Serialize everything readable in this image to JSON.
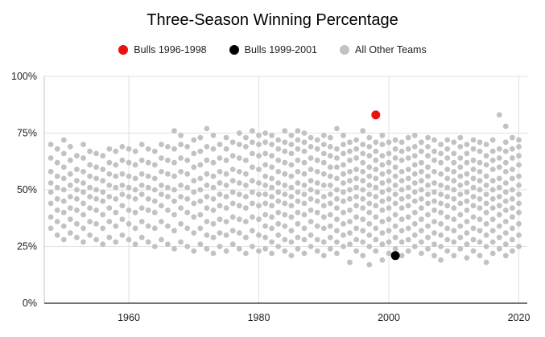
{
  "chart_data": {
    "type": "scatter",
    "title": "Three-Season Winning Percentage",
    "xlabel": "",
    "ylabel": "",
    "xlim": [
      1946,
      2021
    ],
    "ylim": [
      0,
      100
    ],
    "xticks": [
      1960,
      1980,
      2000,
      2020
    ],
    "yticks": [
      0,
      25,
      50,
      75,
      100
    ],
    "ytick_labels": [
      "0%",
      "25%",
      "50%",
      "75%",
      "100%"
    ],
    "grid": true,
    "legend_position": "top-center",
    "colors": {
      "grid": "#e2e2e2",
      "axis": "#212121",
      "y_axis_line": "#c6c6c6",
      "tick_text": "#1f1f1f",
      "background": "#ffffff"
    },
    "series": [
      {
        "name": "Bulls 1996-1998",
        "color": "#e8130c",
        "marker": "large-circle",
        "points": [
          [
            1998,
            83
          ]
        ]
      },
      {
        "name": "Bulls 1999-2001",
        "color": "#000000",
        "marker": "large-circle",
        "points": [
          [
            2001,
            21
          ]
        ]
      },
      {
        "name": "All Other Teams",
        "color": "#c2c2c2",
        "marker": "small-circle",
        "points_by_year": {
          "1948": [
            33,
            38,
            44,
            49,
            53,
            58,
            64,
            70
          ],
          "1949": [
            30,
            36,
            41,
            46,
            51,
            56,
            62,
            68
          ],
          "1950": [
            28,
            34,
            40,
            45,
            50,
            55,
            60,
            66,
            72
          ],
          "1951": [
            31,
            37,
            42,
            47,
            52,
            57,
            63,
            69
          ],
          "1952": [
            29,
            35,
            41,
            46,
            50,
            54,
            59,
            65
          ],
          "1953": [
            27,
            33,
            39,
            44,
            49,
            53,
            58,
            64,
            70
          ],
          "1954": [
            30,
            36,
            42,
            47,
            51,
            56,
            61,
            67
          ],
          "1955": [
            28,
            35,
            41,
            46,
            50,
            55,
            60,
            66
          ],
          "1956": [
            26,
            33,
            39,
            45,
            49,
            54,
            59,
            65
          ],
          "1957": [
            29,
            36,
            42,
            47,
            52,
            57,
            62,
            68
          ],
          "1958": [
            27,
            34,
            40,
            46,
            51,
            56,
            61,
            67
          ],
          "1959": [
            30,
            37,
            43,
            48,
            52,
            57,
            63,
            69
          ],
          "1960": [
            28,
            35,
            41,
            47,
            51,
            56,
            62,
            68
          ],
          "1961": [
            26,
            33,
            40,
            46,
            50,
            55,
            61,
            67
          ],
          "1962": [
            29,
            36,
            42,
            48,
            52,
            57,
            63,
            70
          ],
          "1963": [
            27,
            34,
            41,
            46,
            51,
            56,
            62,
            68
          ],
          "1964": [
            25,
            33,
            40,
            45,
            50,
            55,
            61,
            67
          ],
          "1965": [
            28,
            36,
            43,
            48,
            52,
            58,
            64,
            70
          ],
          "1966": [
            26,
            34,
            41,
            47,
            51,
            57,
            63,
            69
          ],
          "1967": [
            24,
            32,
            39,
            45,
            50,
            56,
            62,
            68,
            76
          ],
          "1968": [
            27,
            35,
            42,
            47,
            52,
            58,
            64,
            70,
            74
          ],
          "1969": [
            25,
            33,
            40,
            46,
            51,
            57,
            63,
            69
          ],
          "1970": [
            23,
            31,
            38,
            44,
            49,
            54,
            60,
            66,
            72
          ],
          "1971": [
            26,
            33,
            39,
            45,
            50,
            55,
            61,
            67,
            73
          ],
          "1972": [
            24,
            30,
            36,
            42,
            47,
            52,
            57,
            63,
            69,
            77
          ],
          "1973": [
            22,
            29,
            35,
            41,
            46,
            51,
            56,
            62,
            68,
            74
          ],
          "1974": [
            25,
            31,
            37,
            43,
            48,
            53,
            58,
            64,
            70
          ],
          "1975": [
            23,
            30,
            36,
            42,
            47,
            52,
            57,
            63,
            68,
            73
          ],
          "1976": [
            26,
            32,
            38,
            44,
            49,
            54,
            59,
            65,
            71
          ],
          "1977": [
            24,
            31,
            37,
            43,
            48,
            53,
            58,
            64,
            70,
            75
          ],
          "1978": [
            22,
            29,
            36,
            42,
            47,
            52,
            57,
            63,
            69,
            73
          ],
          "1979": [
            25,
            32,
            38,
            44,
            49,
            54,
            60,
            66,
            71,
            76
          ],
          "1980": [
            23,
            30,
            37,
            43,
            48,
            53,
            59,
            65,
            70,
            74
          ],
          "1981": [
            24,
            29,
            34,
            39,
            44,
            48,
            52,
            56,
            61,
            66,
            71,
            75
          ],
          "1982": [
            22,
            27,
            33,
            38,
            43,
            47,
            51,
            55,
            60,
            65,
            70,
            74
          ],
          "1983": [
            25,
            30,
            35,
            40,
            45,
            49,
            53,
            58,
            63,
            68,
            72
          ],
          "1984": [
            23,
            28,
            34,
            39,
            44,
            48,
            52,
            57,
            62,
            67,
            71,
            76
          ],
          "1985": [
            21,
            27,
            32,
            38,
            43,
            47,
            51,
            56,
            61,
            66,
            70,
            74
          ],
          "1986": [
            24,
            29,
            35,
            40,
            45,
            49,
            53,
            58,
            63,
            68,
            72,
            76
          ],
          "1987": [
            22,
            28,
            33,
            39,
            44,
            48,
            52,
            57,
            62,
            67,
            71,
            75
          ],
          "1988": [
            25,
            30,
            36,
            41,
            46,
            50,
            54,
            59,
            64,
            69,
            73
          ],
          "1989": [
            23,
            28,
            34,
            40,
            45,
            49,
            53,
            58,
            63,
            68,
            72
          ],
          "1990": [
            21,
            27,
            33,
            38,
            43,
            47,
            52,
            57,
            62,
            66,
            70,
            74
          ],
          "1991": [
            24,
            29,
            34,
            39,
            44,
            48,
            52,
            56,
            60,
            65,
            69,
            73
          ],
          "1992": [
            22,
            27,
            32,
            37,
            42,
            46,
            50,
            55,
            60,
            64,
            68,
            77
          ],
          "1993": [
            25,
            30,
            35,
            40,
            45,
            49,
            53,
            57,
            61,
            66,
            70,
            74
          ],
          "1994": [
            18,
            26,
            31,
            36,
            41,
            46,
            50,
            54,
            58,
            63,
            67,
            71
          ],
          "1995": [
            23,
            28,
            33,
            38,
            43,
            47,
            51,
            55,
            59,
            64,
            68,
            72
          ],
          "1996": [
            21,
            27,
            32,
            37,
            42,
            46,
            50,
            54,
            58,
            62,
            66,
            70,
            76
          ],
          "1997": [
            17,
            25,
            30,
            35,
            40,
            44,
            48,
            52,
            56,
            60,
            65,
            69,
            73
          ],
          "1998": [
            23,
            28,
            33,
            38,
            43,
            47,
            51,
            55,
            59,
            63,
            67,
            71
          ],
          "1999": [
            19,
            26,
            31,
            36,
            41,
            45,
            49,
            53,
            57,
            61,
            65,
            70,
            74
          ],
          "2000": [
            22,
            27,
            32,
            37,
            42,
            46,
            50,
            54,
            58,
            62,
            66,
            71
          ],
          "2001": [
            24,
            29,
            34,
            39,
            44,
            48,
            52,
            56,
            60,
            64,
            68,
            72
          ],
          "2002": [
            21,
            27,
            32,
            37,
            42,
            46,
            50,
            54,
            58,
            63,
            67,
            71
          ],
          "2003": [
            23,
            28,
            33,
            38,
            43,
            47,
            51,
            55,
            59,
            64,
            68,
            73
          ],
          "2004": [
            25,
            30,
            35,
            40,
            45,
            49,
            53,
            57,
            61,
            65,
            69,
            74
          ],
          "2005": [
            22,
            27,
            32,
            37,
            42,
            46,
            50,
            54,
            58,
            62,
            67,
            71
          ],
          "2006": [
            24,
            29,
            34,
            39,
            44,
            48,
            52,
            56,
            60,
            65,
            69,
            73
          ],
          "2007": [
            21,
            26,
            31,
            36,
            41,
            45,
            49,
            53,
            58,
            63,
            67,
            72
          ],
          "2008": [
            19,
            25,
            30,
            35,
            40,
            44,
            48,
            52,
            57,
            62,
            66,
            70
          ],
          "2009": [
            23,
            28,
            33,
            38,
            43,
            47,
            51,
            55,
            59,
            64,
            68,
            72
          ],
          "2010": [
            21,
            27,
            32,
            37,
            42,
            46,
            50,
            54,
            58,
            62,
            66,
            71
          ],
          "2011": [
            24,
            29,
            34,
            39,
            44,
            48,
            52,
            56,
            60,
            64,
            69,
            73
          ],
          "2012": [
            20,
            26,
            31,
            36,
            41,
            45,
            49,
            53,
            57,
            62,
            66,
            70
          ],
          "2013": [
            23,
            28,
            33,
            38,
            43,
            47,
            51,
            55,
            59,
            63,
            68,
            72
          ],
          "2014": [
            21,
            27,
            32,
            37,
            42,
            46,
            50,
            54,
            58,
            62,
            67,
            71
          ],
          "2015": [
            18,
            25,
            30,
            35,
            40,
            44,
            48,
            52,
            56,
            61,
            65,
            70
          ],
          "2016": [
            22,
            27,
            32,
            37,
            42,
            46,
            50,
            54,
            59,
            63,
            67,
            72
          ],
          "2017": [
            24,
            29,
            34,
            39,
            43,
            47,
            51,
            55,
            60,
            64,
            68,
            83
          ],
          "2018": [
            21,
            26,
            31,
            36,
            41,
            45,
            49,
            53,
            58,
            62,
            67,
            71,
            78
          ],
          "2019": [
            23,
            28,
            33,
            38,
            42,
            46,
            50,
            55,
            59,
            64,
            68,
            73
          ],
          "2020": [
            25,
            30,
            35,
            40,
            44,
            48,
            52,
            56,
            61,
            65,
            69,
            72
          ]
        }
      }
    ]
  }
}
